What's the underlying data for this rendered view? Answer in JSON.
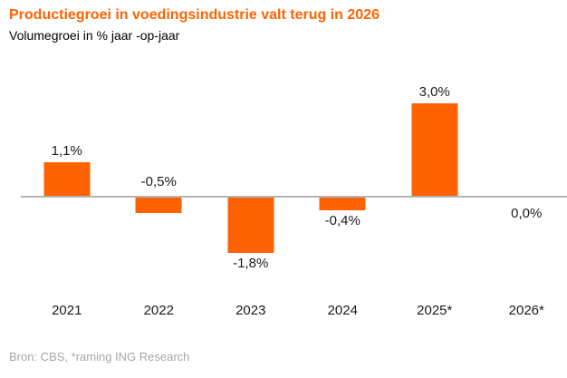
{
  "header": {
    "title": "Productiegroei in voedingsindustrie valt terug in 2026",
    "subtitle": "Volumegroei in % jaar -op-jaar"
  },
  "footer": {
    "source": "Bron: CBS, *raming ING Research"
  },
  "colors": {
    "accent": "#FF6200",
    "bar": "#FF6200",
    "axis_line": "#B3B3B3",
    "text": "#1A1A1A",
    "source_text": "#A6A6A6"
  },
  "chart_data": {
    "type": "bar",
    "title": "Productiegroei in voedingsindustrie valt terug in 2026",
    "subtitle": "Volumegroei in % jaar -op-jaar",
    "categories": [
      "2021",
      "2022",
      "2023",
      "2024",
      "2025*",
      "2026*"
    ],
    "values": [
      1.1,
      -0.5,
      -1.8,
      -0.4,
      3.0,
      0.0
    ],
    "value_labels": [
      "1,1%",
      "-0,5%",
      "-1,8%",
      "-0,4%",
      "3,0%",
      "0,0%"
    ],
    "label_positions": [
      "above-bar",
      "above-axis",
      "below-bar",
      "below-bar",
      "above-bar",
      "below-axis"
    ],
    "unit": "%",
    "xlabel": "",
    "ylabel": "",
    "ylim": [
      -2.2,
      3.6
    ],
    "grid": false,
    "legend_position": "none",
    "zero_axis_line": true
  }
}
